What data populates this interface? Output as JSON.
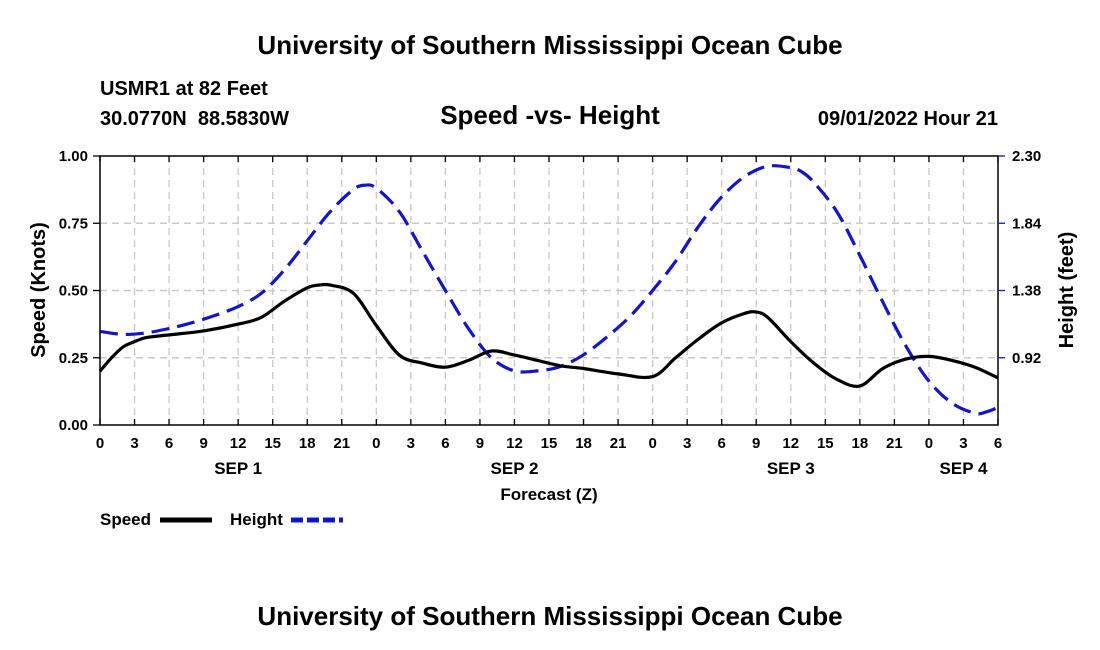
{
  "header": {
    "title": "University of Southern Mississippi Ocean Cube",
    "station": "USMR1 at 82 Feet",
    "coords": "30.0770N  88.5830W",
    "datetime": "09/01/2022 Hour 21"
  },
  "footer": {
    "title": "University of Southern Mississippi Ocean Cube"
  },
  "colors": {
    "speed": "#000000",
    "height": "#1414c8"
  },
  "chart_data": {
    "type": "line",
    "title": "Speed -vs- Height",
    "xlabel": "Forecast (Z)",
    "ylabel": "Speed (Knots)",
    "y2label": "Height (feet)",
    "x_unit": "forecast hour (0 = SEP 1 00Z)",
    "xlim": [
      0,
      78
    ],
    "ylim": [
      0,
      1.0
    ],
    "y2lim": [
      0.46,
      2.3
    ],
    "x_tick_values": [
      0,
      3,
      6,
      9,
      12,
      15,
      18,
      21,
      24,
      27,
      30,
      33,
      36,
      39,
      42,
      45,
      48,
      51,
      54,
      57,
      60,
      63,
      66,
      69,
      72,
      75,
      78
    ],
    "x_tick_labels": [
      "0",
      "3",
      "6",
      "9",
      "12",
      "15",
      "18",
      "21",
      "0",
      "3",
      "6",
      "9",
      "12",
      "15",
      "18",
      "21",
      "0",
      "3",
      "6",
      "9",
      "12",
      "15",
      "18",
      "21",
      "0",
      "3",
      "6"
    ],
    "y_ticks": [
      "0.00",
      "0.25",
      "0.50",
      "0.75",
      "1.00"
    ],
    "y2_ticks": [
      "0.92",
      "1.38",
      "1.84",
      "2.30"
    ],
    "day_labels": [
      {
        "label": "SEP 1",
        "x": 12
      },
      {
        "label": "SEP 2",
        "x": 36
      },
      {
        "label": "SEP 3",
        "x": 60
      },
      {
        "label": "SEP 4",
        "x": 75
      }
    ],
    "series": [
      {
        "name": "Speed",
        "axis": "left",
        "style": "solid",
        "x": [
          0,
          1,
          2,
          3,
          4,
          6,
          9,
          12,
          14,
          16,
          18,
          19,
          20,
          22,
          24,
          26,
          28,
          30,
          32,
          34,
          36,
          38,
          40,
          42,
          45,
          48,
          50,
          52,
          54,
          56,
          57,
          58,
          60,
          62,
          64,
          66,
          68,
          70,
          72,
          74,
          76,
          78
        ],
        "values": [
          0.2,
          0.25,
          0.29,
          0.31,
          0.325,
          0.335,
          0.35,
          0.375,
          0.4,
          0.46,
          0.51,
          0.52,
          0.52,
          0.49,
          0.37,
          0.26,
          0.23,
          0.215,
          0.24,
          0.275,
          0.26,
          0.24,
          0.22,
          0.21,
          0.19,
          0.18,
          0.25,
          0.32,
          0.38,
          0.415,
          0.42,
          0.4,
          0.31,
          0.23,
          0.17,
          0.145,
          0.21,
          0.245,
          0.255,
          0.24,
          0.215,
          0.175
        ]
      },
      {
        "name": "Height",
        "axis": "right",
        "style": "dashed",
        "x": [
          0,
          2,
          4,
          6,
          8,
          10,
          12,
          14,
          16,
          18,
          20,
          22,
          23,
          24,
          26,
          28,
          30,
          32,
          34,
          36,
          38,
          40,
          42,
          44,
          46,
          48,
          50,
          52,
          54,
          56,
          58,
          60,
          61,
          62,
          64,
          66,
          68,
          70,
          72,
          74,
          76,
          77,
          78
        ],
        "values": [
          1.1,
          1.08,
          1.09,
          1.12,
          1.16,
          1.21,
          1.27,
          1.36,
          1.52,
          1.72,
          1.92,
          2.07,
          2.1,
          2.08,
          1.92,
          1.65,
          1.38,
          1.12,
          0.92,
          0.83,
          0.83,
          0.86,
          0.94,
          1.06,
          1.2,
          1.38,
          1.58,
          1.82,
          2.02,
          2.16,
          2.23,
          2.22,
          2.19,
          2.12,
          1.92,
          1.62,
          1.3,
          1.0,
          0.76,
          0.61,
          0.54,
          0.55,
          0.58
        ]
      }
    ],
    "legend": [
      {
        "label": "Speed",
        "style": "solid"
      },
      {
        "label": "Height",
        "style": "dashed"
      }
    ],
    "grid": true
  }
}
